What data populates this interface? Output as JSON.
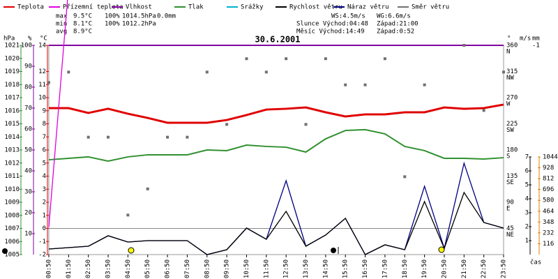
{
  "legend": [
    {
      "name": "Teplota",
      "color": "#e00000"
    },
    {
      "name": "Přízemní teplota",
      "color": "#e000e0"
    },
    {
      "name": "Vlhkost",
      "color": "#8000a0"
    },
    {
      "name": "Tlak",
      "color": "#309030"
    },
    {
      "name": "Srážky",
      "color": "#00b0d0"
    },
    {
      "name": "Rychlost větru",
      "color": "#000000"
    },
    {
      "name": "Náraz větru",
      "color": "#000080"
    },
    {
      "name": "Směr větru",
      "color": "#707070"
    }
  ],
  "stats": [
    [
      "max",
      "9.5°C",
      "100%",
      "1014.5hPa",
      "0.0mm"
    ],
    [
      "min",
      "8.1°C",
      "100%",
      "1012.2hPa"
    ],
    [
      "avg",
      "8.9°C"
    ]
  ],
  "info": [
    [
      "WS:4.5m/s",
      "WG:6.6m/s"
    ],
    [
      "Slunce Východ:04:48",
      "Západ:21:00"
    ],
    [
      "Měsíc Východ:14:49",
      "Západ:0:52"
    ]
  ],
  "chart_data": {
    "type": "line",
    "title": "30.6.2001",
    "x_label": "čas",
    "x": [
      "00:50",
      "01:50",
      "02:50",
      "03:50",
      "04:50",
      "05:50",
      "06:50",
      "07:50",
      "08:50",
      "09:50",
      "10:50",
      "11:50",
      "12:50",
      "13:50",
      "14:50",
      "15:50",
      "16:50",
      "17:50",
      "18:50",
      "19:50",
      "20:50",
      "21:50",
      "22:50",
      "23:50"
    ],
    "axes": {
      "hPa": {
        "label": "hPa",
        "color": "#309030",
        "lim": [
          1005,
          1021
        ],
        "ticks": [
          1005,
          1006,
          1007,
          1008,
          1009,
          1010,
          1011,
          1012,
          1013,
          1014,
          1015,
          1016,
          1017,
          1018,
          1019,
          1020,
          1021
        ]
      },
      "pct": {
        "label": "%",
        "color": "#8000a0",
        "lim": [
          0,
          100
        ],
        "ticks": [
          10,
          20,
          30,
          40,
          50,
          60,
          70,
          80,
          90,
          100
        ]
      },
      "C": {
        "label": "°C",
        "color": "#e00000",
        "lim": [
          -2,
          14
        ],
        "ticks": [
          -2,
          -1,
          0,
          1,
          2,
          3,
          4,
          5,
          6,
          7,
          8,
          9,
          10,
          11,
          12,
          14
        ]
      },
      "dir": {
        "label": "°",
        "color": "#000000",
        "lim": [
          0,
          360
        ],
        "ticks": [
          45,
          90,
          135,
          180,
          225,
          270,
          315,
          360
        ],
        "tick_names": [
          "NE",
          "E",
          "SE",
          "S",
          "SW",
          "W",
          "NW",
          "N"
        ]
      },
      "ms": {
        "label": "m/s",
        "color": "#000000",
        "lim": [
          0,
          7
        ],
        "ticks": [
          1,
          2,
          3,
          4,
          5,
          6,
          7
        ]
      },
      "mm": {
        "label": "mm",
        "color": "#00b0d0",
        "lim": [
          0,
          1
        ],
        "ticks": [
          {
            "value": 1,
            "label": "-1"
          }
        ]
      },
      "energy": {
        "color": "#e08000",
        "lim": [
          0,
          1044
        ],
        "ticks": [
          116,
          232,
          348,
          464,
          580,
          696,
          812,
          928,
          1044
        ]
      }
    },
    "zero_line": {
      "axis": "C",
      "value": 0
    },
    "series": [
      {
        "name": "Vlhkost",
        "axis": "pct",
        "color": "#8000a0",
        "values": [
          100,
          100,
          100,
          100,
          100,
          100,
          100,
          100,
          100,
          100,
          100,
          100,
          100,
          100,
          100,
          100,
          100,
          100,
          100,
          100,
          100,
          100,
          100,
          100
        ]
      },
      {
        "name": "Tlak",
        "axis": "hPa",
        "color": "#309030",
        "values": [
          1012.25,
          1012.36,
          1012.47,
          1012.15,
          1012.47,
          1012.63,
          1012.63,
          1012.63,
          1013.0,
          1012.95,
          1013.37,
          1013.27,
          1013.21,
          1012.84,
          1013.85,
          1014.49,
          1014.55,
          1014.23,
          1013.27,
          1012.95,
          1012.36,
          1012.36,
          1012.31,
          1012.41
        ]
      },
      {
        "name": "Teplota",
        "axis": "C",
        "color": "#e00000",
        "values": [
          9.2,
          9.2,
          8.83,
          9.15,
          8.77,
          8.45,
          8.08,
          8.08,
          8.08,
          8.29,
          8.67,
          9.09,
          9.15,
          9.25,
          8.88,
          8.56,
          8.72,
          8.72,
          8.88,
          8.88,
          9.25,
          9.15,
          9.2,
          9.47
        ]
      },
      {
        "name": "Přízemní teplota",
        "axis": "C",
        "color": "#e000e0",
        "values": [
          0.1,
          18.5,
          null,
          null,
          null,
          null,
          null,
          null,
          null,
          null,
          null,
          null,
          null,
          null,
          null,
          null,
          null,
          null,
          null,
          null,
          null,
          null,
          null,
          null
        ]
      },
      {
        "name": "Náraz větru",
        "axis": "ms",
        "color": "#000080",
        "values": [
          0.4,
          0.5,
          0.6,
          1.35,
          0.9,
          1.0,
          1.0,
          1.0,
          0,
          0.35,
          1.9,
          1.1,
          5.3,
          0.6,
          1.4,
          2.6,
          0,
          0.7,
          0.35,
          4.9,
          0.45,
          6.55,
          2.3,
          1.9
        ]
      },
      {
        "name": "Rychlost větru",
        "axis": "ms",
        "color": "#000000",
        "values": [
          0.4,
          0.5,
          0.6,
          1.35,
          0.9,
          1.0,
          1.0,
          1.0,
          0,
          0.35,
          1.9,
          1.1,
          3.1,
          0.6,
          1.4,
          2.6,
          0,
          0.7,
          0.35,
          3.8,
          0.45,
          4.45,
          2.3,
          1.9
        ]
      },
      {
        "name": "Směr větru",
        "axis": "dir",
        "color": "#707070",
        "marker": "square",
        "values": [
          296,
          314,
          202,
          202,
          68,
          113,
          202,
          202,
          314,
          224,
          337,
          314,
          337,
          224,
          337,
          292,
          292,
          337,
          134,
          292,
          null,
          360,
          248,
          314
        ]
      }
    ]
  }
}
